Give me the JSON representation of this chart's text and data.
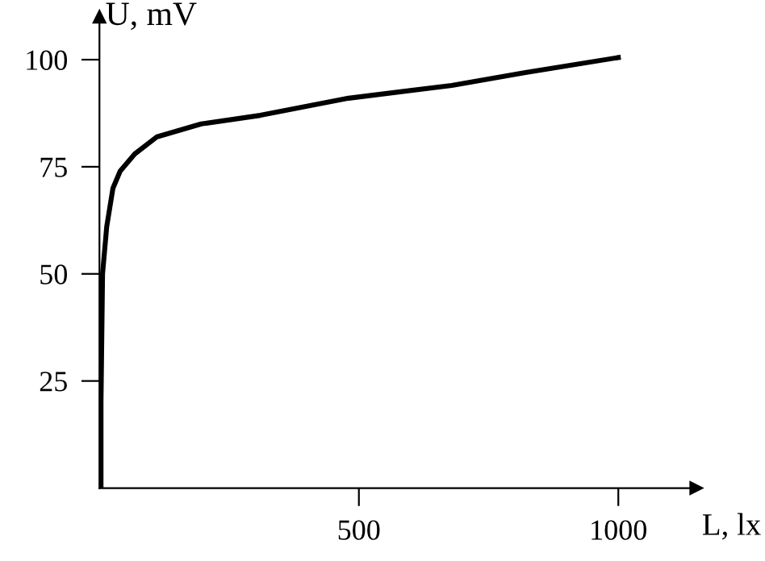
{
  "chart_data": {
    "type": "line",
    "xlabel": "L, lx",
    "ylabel": "U, mV",
    "x": [
      3,
      3,
      6,
      14,
      26,
      40,
      68,
      111,
      196,
      310,
      480,
      679,
      821,
      1000
    ],
    "series": [
      {
        "color": "#000000",
        "values": [
          0,
          20,
          50,
          61,
          70,
          74,
          78,
          82,
          85,
          87,
          91,
          94,
          97,
          100.5
        ]
      }
    ],
    "xlim": [
      0,
      1150
    ],
    "ylim": [
      0,
      110
    ],
    "xticks": [
      500,
      1000
    ],
    "yticks": [
      25,
      50,
      75,
      100
    ],
    "grid": false,
    "legend": false,
    "marker": "none",
    "line_style": "solid"
  }
}
